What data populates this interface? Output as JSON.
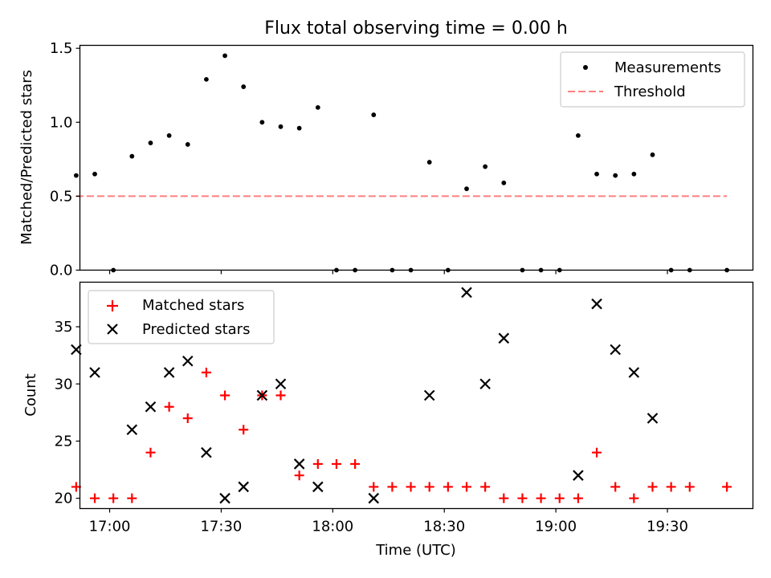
{
  "chart_data": [
    {
      "type": "scatter",
      "title": "Flux total observing time = 0.00 h",
      "xlabel": "",
      "ylabel": "Matched/Predicted stars",
      "xlim": [
        "16:52",
        "19:53"
      ],
      "ylim": [
        0,
        1.52
      ],
      "yticks": [
        0.0,
        0.5,
        1.0,
        1.5
      ],
      "ytick_labels": [
        "0.0",
        "0.5",
        "1.0",
        "1.5"
      ],
      "xticks": [
        "17:00",
        "17:30",
        "18:00",
        "18:30",
        "19:00",
        "19:30"
      ],
      "show_xtick_labels": false,
      "grid": false,
      "legend": {
        "placement": "top-right",
        "entries": [
          "Measurements",
          "Threshold"
        ]
      },
      "series": [
        {
          "name": "Measurements",
          "kind": "scatter",
          "marker": "dot",
          "color": "#000000",
          "x": [
            "16:51",
            "16:56",
            "17:01",
            "17:06",
            "17:11",
            "17:16",
            "17:21",
            "17:26",
            "17:31",
            "17:36",
            "17:41",
            "17:46",
            "17:51",
            "17:56",
            "18:01",
            "18:06",
            "18:11",
            "18:16",
            "18:21",
            "18:26",
            "18:31",
            "18:36",
            "18:41",
            "18:46",
            "18:51",
            "18:56",
            "19:01",
            "19:06",
            "19:11",
            "19:16",
            "19:21",
            "19:26",
            "19:31",
            "19:36",
            "19:46"
          ],
          "y": [
            0.64,
            0.65,
            0.0,
            0.77,
            0.86,
            0.91,
            0.85,
            1.29,
            1.45,
            1.24,
            1.0,
            0.97,
            0.96,
            1.1,
            0.0,
            0.0,
            1.05,
            0.0,
            0.0,
            0.73,
            0.0,
            0.55,
            0.7,
            0.59,
            0.0,
            0.0,
            0.0,
            0.91,
            0.65,
            0.64,
            0.65,
            0.78,
            0.0,
            0.0,
            0.0
          ]
        },
        {
          "name": "Threshold",
          "kind": "line",
          "style": "dashed",
          "color": "#ff7f7f",
          "x": [
            "16:51",
            "19:46"
          ],
          "y": [
            0.5,
            0.5
          ]
        }
      ]
    },
    {
      "type": "scatter",
      "title": "",
      "xlabel": "Time (UTC)",
      "ylabel": "Count",
      "xlim": [
        "16:52",
        "19:53"
      ],
      "ylim": [
        19.1,
        38.9
      ],
      "yticks": [
        20,
        25,
        30,
        35
      ],
      "ytick_labels": [
        "20",
        "25",
        "30",
        "35"
      ],
      "xticks": [
        "17:00",
        "17:30",
        "18:00",
        "18:30",
        "19:00",
        "19:30"
      ],
      "show_xtick_labels": true,
      "grid": false,
      "legend": {
        "placement": "top-left",
        "entries": [
          "Matched stars",
          "Predicted stars"
        ]
      },
      "series": [
        {
          "name": "Matched stars",
          "kind": "scatter",
          "marker": "plus",
          "color": "#ff0000",
          "x": [
            "16:51",
            "16:56",
            "17:01",
            "17:06",
            "17:11",
            "17:16",
            "17:21",
            "17:26",
            "17:31",
            "17:36",
            "17:41",
            "17:46",
            "17:51",
            "17:56",
            "18:01",
            "18:06",
            "18:11",
            "18:16",
            "18:21",
            "18:26",
            "18:31",
            "18:36",
            "18:41",
            "18:46",
            "18:51",
            "18:56",
            "19:01",
            "19:06",
            "19:11",
            "19:16",
            "19:21",
            "19:26",
            "19:31",
            "19:36",
            "19:46"
          ],
          "y": [
            21,
            20,
            20,
            20,
            24,
            28,
            27,
            31,
            29,
            26,
            29,
            29,
            22,
            23,
            23,
            23,
            21,
            21,
            21,
            21,
            21,
            21,
            21,
            20,
            20,
            20,
            20,
            20,
            24,
            21,
            20,
            21,
            21,
            21,
            21
          ]
        },
        {
          "name": "Predicted stars",
          "kind": "scatter",
          "marker": "x",
          "color": "#000000",
          "x": [
            "16:51",
            "16:56",
            "17:06",
            "17:11",
            "17:16",
            "17:21",
            "17:26",
            "17:31",
            "17:36",
            "17:41",
            "17:46",
            "17:51",
            "17:56",
            "18:11",
            "18:26",
            "18:36",
            "18:41",
            "18:46",
            "19:06",
            "19:11",
            "19:16",
            "19:21",
            "19:26"
          ],
          "y": [
            33,
            31,
            26,
            28,
            31,
            32,
            24,
            20,
            21,
            29,
            30,
            23,
            21,
            20,
            29,
            38,
            30,
            34,
            22,
            37,
            33,
            31,
            27
          ]
        }
      ]
    }
  ]
}
